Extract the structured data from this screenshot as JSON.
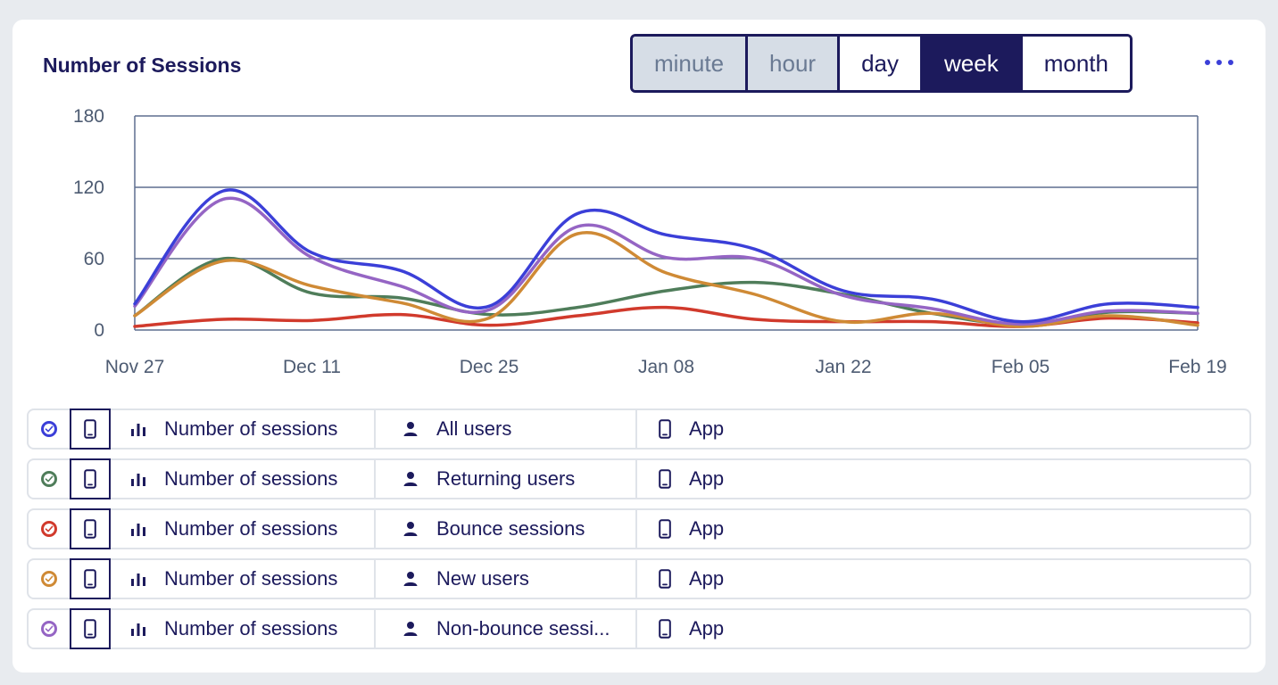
{
  "header": {
    "title": "Number of Sessions"
  },
  "granularity": {
    "options": [
      {
        "label": "minute",
        "state": "disabled"
      },
      {
        "label": "hour",
        "state": "disabled"
      },
      {
        "label": "day",
        "state": "normal"
      },
      {
        "label": "week",
        "state": "active"
      },
      {
        "label": "month",
        "state": "normal"
      }
    ]
  },
  "legend": [
    {
      "metric": "Number of sessions",
      "segment": "All users",
      "platform": "App",
      "color": "#3b3fd8"
    },
    {
      "metric": "Number of sessions",
      "segment": "Returning users",
      "platform": "App",
      "color": "#4f7d5a"
    },
    {
      "metric": "Number of sessions",
      "segment": "Bounce sessions",
      "platform": "App",
      "color": "#d13a2c"
    },
    {
      "metric": "Number of sessions",
      "segment": "New users",
      "platform": "App",
      "color": "#cf8a35"
    },
    {
      "metric": "Number of sessions",
      "segment": "Non-bounce sessi...",
      "platform": "App",
      "color": "#9565c4"
    }
  ],
  "chart_data": {
    "type": "line",
    "x": [
      "Nov 27",
      "Dec 04",
      "Dec 11",
      "Dec 18",
      "Dec 25",
      "Jan 01",
      "Jan 08",
      "Jan 15",
      "Jan 22",
      "Jan 29",
      "Feb 05",
      "Feb 12",
      "Feb 19"
    ],
    "xticks": [
      "Nov 27",
      "Dec 11",
      "Dec 25",
      "Jan 08",
      "Jan 22",
      "Feb 05",
      "Feb 19"
    ],
    "ylim": [
      0,
      180
    ],
    "yticks": [
      0,
      60,
      120,
      180
    ],
    "grid": true,
    "series": [
      {
        "name": "All users",
        "color": "#3b3fd8",
        "values": [
          22,
          117,
          65,
          50,
          20,
          98,
          80,
          68,
          33,
          26,
          7,
          22,
          19
        ]
      },
      {
        "name": "Returning users",
        "color": "#4f7d5a",
        "values": [
          12,
          60,
          31,
          27,
          13,
          19,
          33,
          40,
          30,
          14,
          5,
          15,
          14
        ]
      },
      {
        "name": "Bounce sessions",
        "color": "#d13a2c",
        "values": [
          3,
          9,
          8,
          13,
          4,
          12,
          19,
          9,
          7,
          7,
          3,
          10,
          6
        ]
      },
      {
        "name": "New users",
        "color": "#cf8a35",
        "values": [
          12,
          58,
          37,
          23,
          10,
          81,
          48,
          30,
          7,
          14,
          3,
          12,
          4
        ]
      },
      {
        "name": "Non-bounce sessions",
        "color": "#9565c4",
        "values": [
          20,
          110,
          61,
          37,
          17,
          87,
          61,
          60,
          29,
          18,
          5,
          16,
          14
        ]
      }
    ]
  }
}
